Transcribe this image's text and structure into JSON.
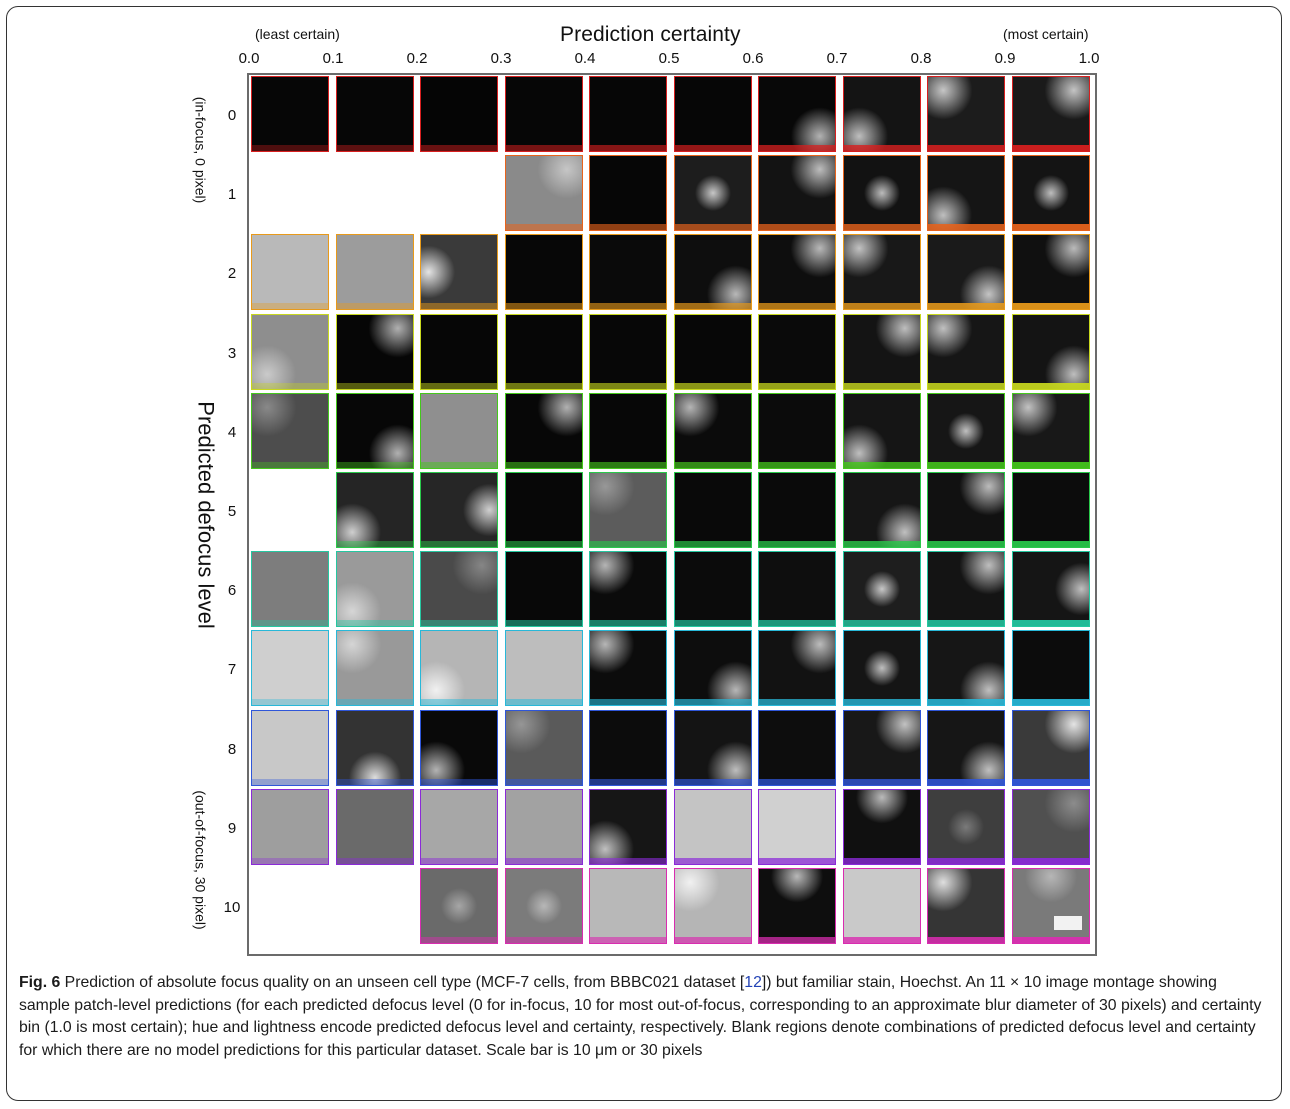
{
  "figure": {
    "title": "Prediction certainty",
    "left_end_label": "(least certain)",
    "right_end_label": "(most certain)",
    "x_ticks": [
      "0.0",
      "0.1",
      "0.2",
      "0.3",
      "0.4",
      "0.5",
      "0.6",
      "0.7",
      "0.8",
      "0.9",
      "1.0"
    ],
    "y_axis_label": "Predicted defocus level",
    "y_top_label": "(in-focus, 0 pixel)",
    "y_bottom_label": "(out-of-focus, 30 pixel)",
    "row_labels": [
      "0",
      "1",
      "2",
      "3",
      "4",
      "5",
      "6",
      "7",
      "8",
      "9",
      "10"
    ],
    "row_colors": [
      "#d81f1f",
      "#e8631c",
      "#e89a1a",
      "#c8d81e",
      "#45c81c",
      "#29c94a",
      "#25c7a1",
      "#28b8d8",
      "#2f56d9",
      "#8b2ad8",
      "#d92cb0"
    ],
    "tiles": [
      [
        {
          "shade": "#060606",
          "highlight": "none"
        },
        {
          "shade": "#060606",
          "highlight": "none"
        },
        {
          "shade": "#050505",
          "highlight": "none"
        },
        {
          "shade": "#060606",
          "highlight": "none"
        },
        {
          "shade": "#060606",
          "highlight": "none"
        },
        {
          "shade": "#060606",
          "highlight": "none"
        },
        {
          "shade": "#080808",
          "highlight": "bottom-right"
        },
        {
          "shade": "#141414",
          "highlight": "bottom-left"
        },
        {
          "shade": "#1c1c1c",
          "highlight": "top-left"
        },
        {
          "shade": "#1a1a1a",
          "highlight": "top-right"
        }
      ],
      [
        null,
        null,
        null,
        {
          "shade": "#8a8a8a",
          "highlight": "top-right"
        },
        {
          "shade": "#060606",
          "highlight": "none"
        },
        {
          "shade": "#1d1d1d",
          "highlight": "center"
        },
        {
          "shade": "#131313",
          "highlight": "top-right"
        },
        {
          "shade": "#121212",
          "highlight": "center"
        },
        {
          "shade": "#151515",
          "highlight": "bottom-left"
        },
        {
          "shade": "#141414",
          "highlight": "center"
        }
      ],
      [
        {
          "shade": "#b9b9b9",
          "highlight": "none"
        },
        {
          "shade": "#9c9c9c",
          "highlight": "none"
        },
        {
          "shade": "#3a3a3a",
          "highlight": "left"
        },
        {
          "shade": "#070707",
          "highlight": "none"
        },
        {
          "shade": "#0a0a0a",
          "highlight": "none"
        },
        {
          "shade": "#0e0e0e",
          "highlight": "bottom-right"
        },
        {
          "shade": "#0e0e0e",
          "highlight": "top-right"
        },
        {
          "shade": "#181818",
          "highlight": "top-left"
        },
        {
          "shade": "#1a1a1a",
          "highlight": "bottom-right"
        },
        {
          "shade": "#101010",
          "highlight": "top-right"
        }
      ],
      [
        {
          "shade": "#8e8e8e",
          "highlight": "bottom-left"
        },
        {
          "shade": "#060606",
          "highlight": "top-right"
        },
        {
          "shade": "#060606",
          "highlight": "none"
        },
        {
          "shade": "#060606",
          "highlight": "none"
        },
        {
          "shade": "#070707",
          "highlight": "none"
        },
        {
          "shade": "#070707",
          "highlight": "none"
        },
        {
          "shade": "#0a0a0a",
          "highlight": "none"
        },
        {
          "shade": "#141414",
          "highlight": "top-right"
        },
        {
          "shade": "#161616",
          "highlight": "top-left"
        },
        {
          "shade": "#141414",
          "highlight": "bottom-right"
        }
      ],
      [
        {
          "shade": "#4d4d4d",
          "highlight": "top-left"
        },
        {
          "shade": "#070707",
          "highlight": "bottom-right"
        },
        {
          "shade": "#8f8f8f",
          "highlight": "none"
        },
        {
          "shade": "#070707",
          "highlight": "top-right"
        },
        {
          "shade": "#070707",
          "highlight": "none"
        },
        {
          "shade": "#0b0b0b",
          "highlight": "top-left"
        },
        {
          "shade": "#0b0b0b",
          "highlight": "none"
        },
        {
          "shade": "#151515",
          "highlight": "bottom-left"
        },
        {
          "shade": "#161616",
          "highlight": "center"
        },
        {
          "shade": "#181818",
          "highlight": "top-left"
        }
      ],
      [
        null,
        {
          "shade": "#252525",
          "highlight": "bottom-left"
        },
        {
          "shade": "#262626",
          "highlight": "right"
        },
        {
          "shade": "#070707",
          "highlight": "none"
        },
        {
          "shade": "#5c5c5c",
          "highlight": "top-left"
        },
        {
          "shade": "#090909",
          "highlight": "none"
        },
        {
          "shade": "#0a0a0a",
          "highlight": "none"
        },
        {
          "shade": "#161616",
          "highlight": "bottom-right"
        },
        {
          "shade": "#111111",
          "highlight": "top-right"
        },
        {
          "shade": "#0c0c0c",
          "highlight": "none"
        }
      ],
      [
        {
          "shade": "#7d7d7d",
          "highlight": "none"
        },
        {
          "shade": "#9a9a9a",
          "highlight": "bottom-left"
        },
        {
          "shade": "#4a4a4a",
          "highlight": "top-right"
        },
        {
          "shade": "#080808",
          "highlight": "none"
        },
        {
          "shade": "#0b0b0b",
          "highlight": "top-left"
        },
        {
          "shade": "#0b0b0b",
          "highlight": "none"
        },
        {
          "shade": "#0e0e0e",
          "highlight": "none"
        },
        {
          "shade": "#1e1e1e",
          "highlight": "center"
        },
        {
          "shade": "#141414",
          "highlight": "top-right"
        },
        {
          "shade": "#151515",
          "highlight": "right"
        }
      ],
      [
        {
          "shade": "#cfcfcf",
          "highlight": "none"
        },
        {
          "shade": "#999999",
          "highlight": "top-left"
        },
        {
          "shade": "#b5b5b5",
          "highlight": "bottom-left"
        },
        {
          "shade": "#bdbdbd",
          "highlight": "none"
        },
        {
          "shade": "#0c0c0c",
          "highlight": "top-left"
        },
        {
          "shade": "#0d0d0d",
          "highlight": "bottom-right"
        },
        {
          "shade": "#121212",
          "highlight": "top-right"
        },
        {
          "shade": "#151515",
          "highlight": "center"
        },
        {
          "shade": "#161616",
          "highlight": "bottom-right"
        },
        {
          "shade": "#0c0c0c",
          "highlight": "none"
        }
      ],
      [
        {
          "shade": "#c8c8c8",
          "highlight": "none"
        },
        {
          "shade": "#333333",
          "highlight": "bottom"
        },
        {
          "shade": "#090909",
          "highlight": "bottom-left"
        },
        {
          "shade": "#5a5a5a",
          "highlight": "top-left"
        },
        {
          "shade": "#0c0c0c",
          "highlight": "none"
        },
        {
          "shade": "#141414",
          "highlight": "bottom-right"
        },
        {
          "shade": "#0d0d0d",
          "highlight": "none"
        },
        {
          "shade": "#181818",
          "highlight": "top-right"
        },
        {
          "shade": "#161616",
          "highlight": "bottom-right"
        },
        {
          "shade": "#3a3a3a",
          "highlight": "top-right"
        }
      ],
      [
        {
          "shade": "#9e9e9e",
          "highlight": "none"
        },
        {
          "shade": "#6a6a6a",
          "highlight": "none"
        },
        {
          "shade": "#a7a7a7",
          "highlight": "none"
        },
        {
          "shade": "#a2a2a2",
          "highlight": "none"
        },
        {
          "shade": "#161616",
          "highlight": "bottom-left"
        },
        {
          "shade": "#c4c4c4",
          "highlight": "none"
        },
        {
          "shade": "#d0d0d0",
          "highlight": "none"
        },
        {
          "shade": "#101010",
          "highlight": "top"
        },
        {
          "shade": "#3e3e3e",
          "highlight": "center"
        },
        {
          "shade": "#505050",
          "highlight": "top-right"
        }
      ],
      [
        null,
        null,
        {
          "shade": "#6a6a6a",
          "highlight": "center"
        },
        {
          "shade": "#7b7b7b",
          "highlight": "center"
        },
        {
          "shade": "#b8b8b8",
          "highlight": "none"
        },
        {
          "shade": "#b5b5b5",
          "highlight": "top-left"
        },
        {
          "shade": "#0e0e0e",
          "highlight": "top"
        },
        {
          "shade": "#c9c9c9",
          "highlight": "none"
        },
        {
          "shade": "#353535",
          "highlight": "top-left"
        },
        {
          "shade": "#7a7a7a",
          "highlight": "top"
        }
      ]
    ],
    "caption": {
      "label": "Fig. 6",
      "text_before_ref": " Prediction of absolute focus quality on an unseen cell type (MCF-7 cells, from BBBC021 dataset [",
      "ref": "12",
      "text_after_ref": "]) but familiar stain, Hoechst. An 11 × 10 image montage showing sample patch-level predictions (for each predicted defocus level (0 for in-focus, 10 for most out-of-focus, corresponding to an approximate blur diameter of 30 pixels) and certainty bin (1.0 is most certain); hue and lightness encode predicted defocus level and certainty, respectively. Blank regions denote combinations of predicted defocus level and certainty for which there are no model predictions for this particular dataset. Scale bar is 10 μm or 30 pixels"
    }
  }
}
